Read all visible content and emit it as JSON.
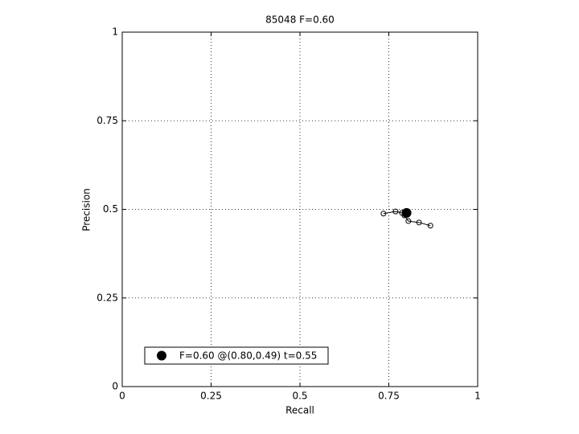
{
  "chart_data": {
    "type": "line",
    "title": "85048 F=0.60",
    "x_label": "Recall",
    "y_label": "Precision",
    "x": [
      0.735,
      0.769,
      0.787,
      0.794,
      0.805,
      0.835,
      0.867
    ],
    "series": [
      {
        "color": "#000000",
        "values": [
          0.488,
          0.494,
          0.49,
          0.483,
          0.467,
          0.463,
          0.454
        ]
      }
    ],
    "best_point": {
      "x": 0.8,
      "y": 0.49,
      "label": "F=0.60 @(0.80,0.49) t=0.55"
    },
    "xlim": [
      0,
      1
    ],
    "ylim": [
      0,
      1
    ],
    "xticks": [
      0,
      0.25,
      0.5,
      0.75,
      1
    ],
    "yticks": [
      0,
      0.25,
      0.5,
      0.75,
      1
    ],
    "grid": true
  }
}
